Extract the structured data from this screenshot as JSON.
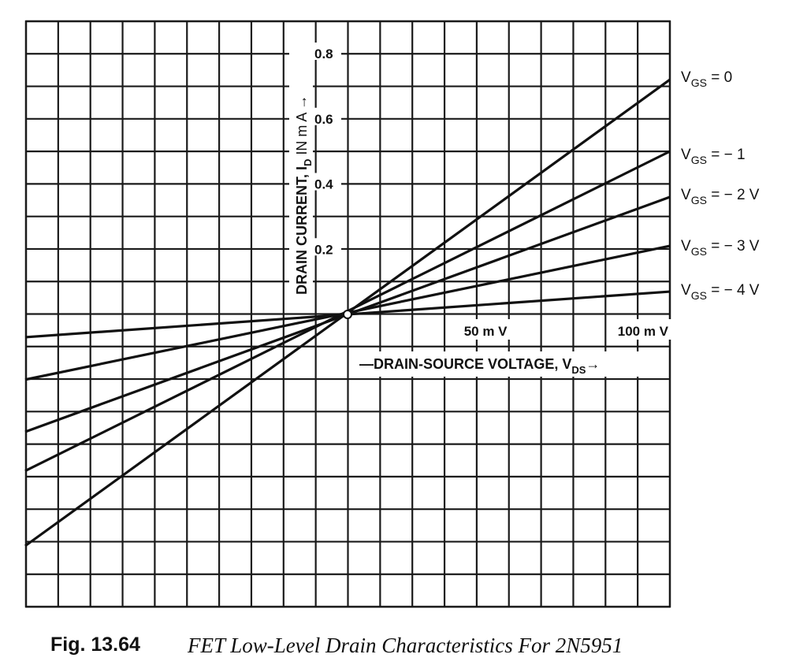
{
  "caption": {
    "number": "Fig. 13.64",
    "text": "FET Low-Level Drain Characteristics For 2N5951"
  },
  "chart_data": {
    "type": "line",
    "title": "FET Low-Level Drain Characteristics For 2N5951",
    "xlabel_parts": {
      "main": "DRAIN-SOURCE VOLTAGE, V",
      "sub": "DS"
    },
    "ylabel_parts": {
      "main": "DRAIN CURRENT, I",
      "sub": "D",
      "unit": " IN m A"
    },
    "x_unit": "mV",
    "y_unit": "mA",
    "xlim": [
      -100,
      100
    ],
    "ylim": [
      -0.9,
      0.9
    ],
    "x_tick_labels": [
      {
        "value": 50,
        "text": "50 m V"
      },
      {
        "value": 100,
        "text": "100 m V"
      }
    ],
    "y_tick_labels": [
      {
        "value": 0.2,
        "text": "0.2"
      },
      {
        "value": 0.4,
        "text": "0.4"
      },
      {
        "value": 0.6,
        "text": "0.6"
      },
      {
        "value": 0.8,
        "text": "0.8"
      }
    ],
    "grid": true,
    "series": [
      {
        "label_main": "V",
        "label_sub": "GS",
        "label_rest": " = 0",
        "x": [
          -100,
          100
        ],
        "y": [
          -0.71,
          0.72
        ]
      },
      {
        "label_main": "V",
        "label_sub": "GS",
        "label_rest": " = − 1",
        "x": [
          -100,
          100
        ],
        "y": [
          -0.48,
          0.5
        ]
      },
      {
        "label_main": "V",
        "label_sub": "GS",
        "label_rest": " = − 2 V",
        "x": [
          -100,
          100
        ],
        "y": [
          -0.36,
          0.36
        ]
      },
      {
        "label_main": "V",
        "label_sub": "GS",
        "label_rest": " = − 3 V",
        "x": [
          -100,
          100
        ],
        "y": [
          -0.2,
          0.21
        ]
      },
      {
        "label_main": "V",
        "label_sub": "GS",
        "label_rest": " = − 4 V",
        "x": [
          -100,
          100
        ],
        "y": [
          -0.07,
          0.07
        ]
      }
    ]
  }
}
